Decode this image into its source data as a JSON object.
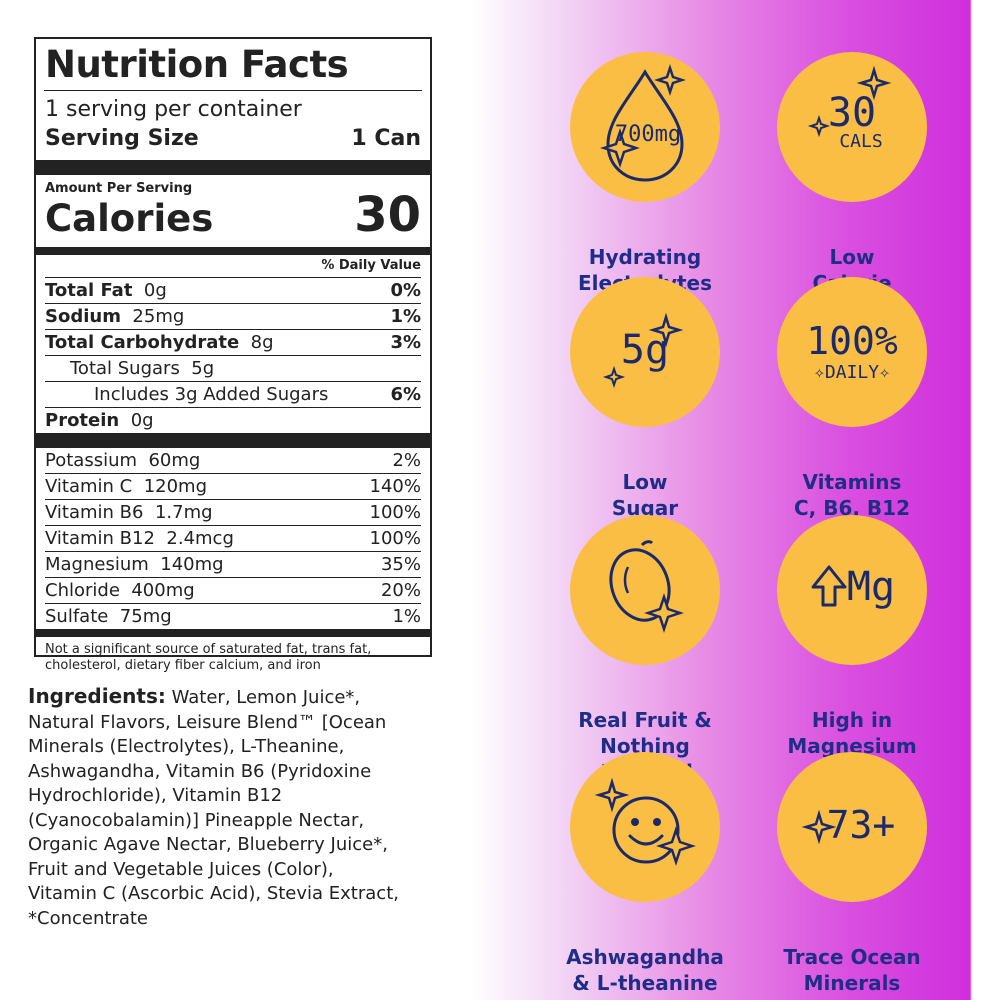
{
  "nutrition": {
    "title": "Nutrition Facts",
    "servings": "1 serving per container",
    "serving_size_label": "Serving Size",
    "serving_size_value": "1 Can",
    "amount_per_serving": "Amount Per Serving",
    "calories_label": "Calories",
    "calories_value": "30",
    "daily_value_header": "% Daily Value",
    "nutrients": [
      {
        "name": "Total Fat",
        "amount": "0g",
        "dv": "0%"
      },
      {
        "name": "Sodium",
        "amount": "25mg",
        "dv": "1%"
      },
      {
        "name": "Total Carbohydrate",
        "amount": "8g",
        "dv": "3%"
      },
      {
        "name": "Total Sugars",
        "amount": "5g",
        "dv": ""
      },
      {
        "name": "Includes 3g Added Sugars",
        "amount": "",
        "dv": "6%"
      },
      {
        "name": "Protein",
        "amount": "0g",
        "dv": ""
      }
    ],
    "vitamins": [
      {
        "name": "Potassium",
        "amount": "60mg",
        "dv": "2%"
      },
      {
        "name": "Vitamin C",
        "amount": "120mg",
        "dv": "140%"
      },
      {
        "name": "Vitamin B6",
        "amount": "1.7mg",
        "dv": "100%"
      },
      {
        "name": "Vitamin B12",
        "amount": "2.4mcg",
        "dv": "100%"
      },
      {
        "name": "Magnesium",
        "amount": "140mg",
        "dv": "35%"
      },
      {
        "name": "Chloride",
        "amount": "400mg",
        "dv": "20%"
      },
      {
        "name": "Sulfate",
        "amount": "75mg",
        "dv": "1%"
      }
    ],
    "footnote": "Not a significant source of saturated fat, trans fat, cholesterol, dietary fiber calcium, and iron"
  },
  "ingredients": {
    "label": "Ingredients:",
    "text": "Water, Lemon Juice*, Natural Flavors, Leisure Blend™ [Ocean Minerals (Electrolytes), L-Theanine, Ashwagandha, Vitamin B6 (Pyridoxine Hydrochloride), Vitamin B12 (Cyanocobalamin)] Pineapple Nectar, Organic Agave Nectar, Blueberry Juice*, Fruit and Vegetable Juices (Color), Vitamin C (Ascorbic Acid), Stevia Extract, *Concentrate"
  },
  "badges": {
    "electrolytes": {
      "icon": "electrolyte-drop-icon",
      "icon_text": "700mg",
      "line1": "Hydrating",
      "line2": "Electrolytes"
    },
    "calorie": {
      "icon": "calorie-icon",
      "icon_big": "30",
      "icon_small": "CALS",
      "line1": "Low",
      "line2": "Calorie"
    },
    "sugar": {
      "icon": "sugar-icon",
      "icon_text": "5g",
      "line1": "Low",
      "line2": "Sugar"
    },
    "vitamins": {
      "icon": "vitamins-icon",
      "icon_big": "100%",
      "icon_small": "DAILY",
      "line1": "Vitamins",
      "line2": "C, B6, B12"
    },
    "fruit": {
      "icon": "lemon-icon",
      "line1": "Real Fruit &",
      "line2": "Nothing Artificial"
    },
    "magnesium": {
      "icon": "magnesium-icon",
      "icon_text": "Mg",
      "line1": "High in",
      "line2": "Magnesium"
    },
    "ashwagandha": {
      "icon": "smiley-icon",
      "line1": "Ashwagandha",
      "line2": "& L-theanine"
    },
    "minerals": {
      "icon": "trace-minerals-icon",
      "icon_text": "73+",
      "line1": "Trace Ocean",
      "line2": "Minerals"
    }
  },
  "colors": {
    "badge_fill": "#fbbe44",
    "badge_text": "#1f2d86",
    "gradient_end": "#cf2fdc"
  }
}
